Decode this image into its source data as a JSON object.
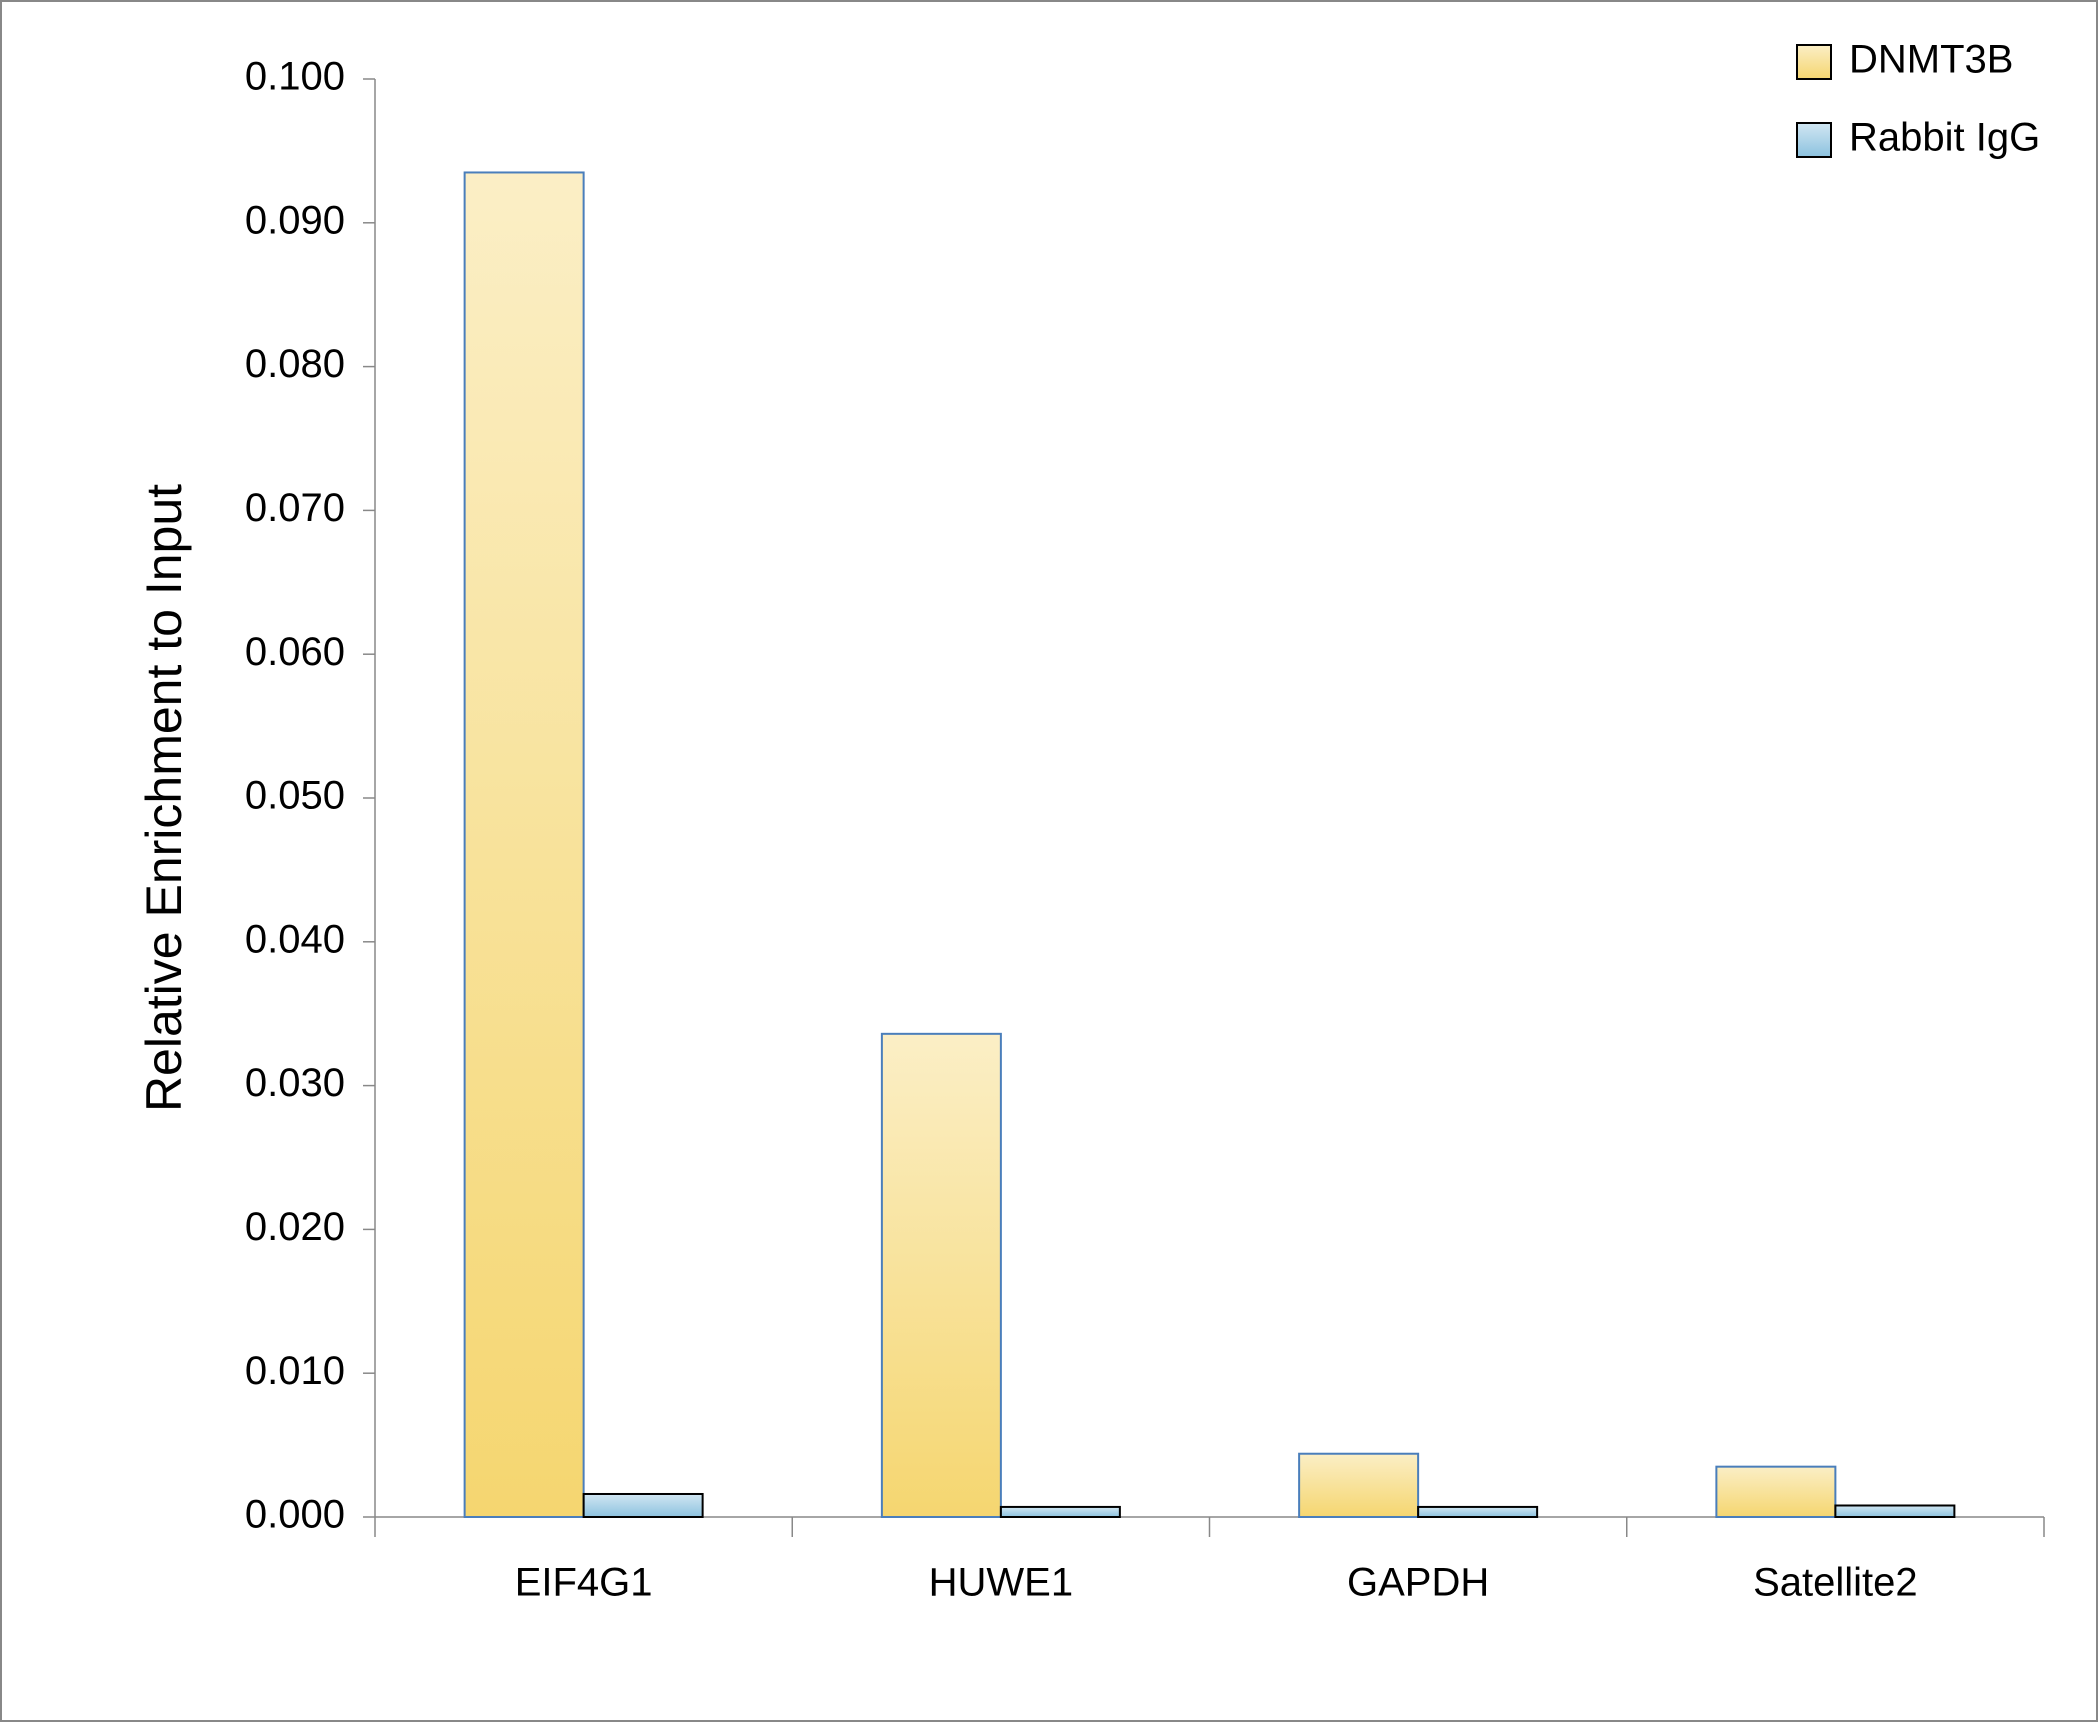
{
  "chart_data": {
    "type": "bar",
    "y_label": "Relative Enrichment to Input",
    "categories": [
      "EIF4G1",
      "HUWE1",
      "GAPDH",
      "Satellite2"
    ],
    "series": [
      {
        "name": "DNMT3B",
        "color": "#f5d670",
        "values": [
          0.0935,
          0.0336,
          0.0044,
          0.0035
        ]
      },
      {
        "name": "Rabbit IgG",
        "color": "#8cc2df",
        "values": [
          0.0016,
          0.0007,
          0.0007,
          0.0008
        ]
      }
    ],
    "ylim": [
      0,
      0.1
    ],
    "yticks": [
      {
        "value": 0,
        "label": "0.000"
      },
      {
        "value": 0.01,
        "label": "0.010"
      },
      {
        "value": 0.02,
        "label": "0.020"
      },
      {
        "value": 0.03,
        "label": "0.030"
      },
      {
        "value": 0.04,
        "label": "0.040"
      },
      {
        "value": 0.05,
        "label": "0.050"
      },
      {
        "value": 0.06,
        "label": "0.060"
      },
      {
        "value": 0.07,
        "label": "0.070"
      },
      {
        "value": 0.08,
        "label": "0.080"
      },
      {
        "value": 0.09,
        "label": "0.090"
      },
      {
        "value": 0.1,
        "label": "0.100"
      }
    ],
    "grid": false,
    "legend": "top-right"
  }
}
